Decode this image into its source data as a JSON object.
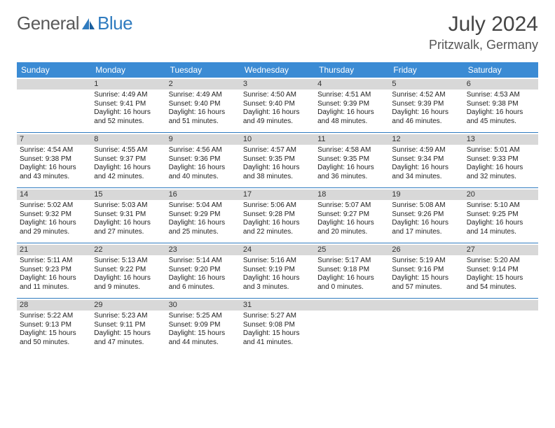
{
  "brand": {
    "general": "General",
    "blue": "Blue"
  },
  "title": "July 2024",
  "location": "Pritzwalk, Germany",
  "colors": {
    "header_bg": "#3b8bd4",
    "row_border": "#2f7bbf",
    "daynum_bg": "#d8d8d8",
    "logo_gray": "#5a5a5a",
    "logo_blue": "#2f7bbf"
  },
  "dayNames": [
    "Sunday",
    "Monday",
    "Tuesday",
    "Wednesday",
    "Thursday",
    "Friday",
    "Saturday"
  ],
  "weeks": [
    [
      {
        "blank": true
      },
      {
        "d": "1",
        "sr": "4:49 AM",
        "ss": "9:41 PM",
        "dl": "16 hours and 52 minutes."
      },
      {
        "d": "2",
        "sr": "4:49 AM",
        "ss": "9:40 PM",
        "dl": "16 hours and 51 minutes."
      },
      {
        "d": "3",
        "sr": "4:50 AM",
        "ss": "9:40 PM",
        "dl": "16 hours and 49 minutes."
      },
      {
        "d": "4",
        "sr": "4:51 AM",
        "ss": "9:39 PM",
        "dl": "16 hours and 48 minutes."
      },
      {
        "d": "5",
        "sr": "4:52 AM",
        "ss": "9:39 PM",
        "dl": "16 hours and 46 minutes."
      },
      {
        "d": "6",
        "sr": "4:53 AM",
        "ss": "9:38 PM",
        "dl": "16 hours and 45 minutes."
      }
    ],
    [
      {
        "d": "7",
        "sr": "4:54 AM",
        "ss": "9:38 PM",
        "dl": "16 hours and 43 minutes."
      },
      {
        "d": "8",
        "sr": "4:55 AM",
        "ss": "9:37 PM",
        "dl": "16 hours and 42 minutes."
      },
      {
        "d": "9",
        "sr": "4:56 AM",
        "ss": "9:36 PM",
        "dl": "16 hours and 40 minutes."
      },
      {
        "d": "10",
        "sr": "4:57 AM",
        "ss": "9:35 PM",
        "dl": "16 hours and 38 minutes."
      },
      {
        "d": "11",
        "sr": "4:58 AM",
        "ss": "9:35 PM",
        "dl": "16 hours and 36 minutes."
      },
      {
        "d": "12",
        "sr": "4:59 AM",
        "ss": "9:34 PM",
        "dl": "16 hours and 34 minutes."
      },
      {
        "d": "13",
        "sr": "5:01 AM",
        "ss": "9:33 PM",
        "dl": "16 hours and 32 minutes."
      }
    ],
    [
      {
        "d": "14",
        "sr": "5:02 AM",
        "ss": "9:32 PM",
        "dl": "16 hours and 29 minutes."
      },
      {
        "d": "15",
        "sr": "5:03 AM",
        "ss": "9:31 PM",
        "dl": "16 hours and 27 minutes."
      },
      {
        "d": "16",
        "sr": "5:04 AM",
        "ss": "9:29 PM",
        "dl": "16 hours and 25 minutes."
      },
      {
        "d": "17",
        "sr": "5:06 AM",
        "ss": "9:28 PM",
        "dl": "16 hours and 22 minutes."
      },
      {
        "d": "18",
        "sr": "5:07 AM",
        "ss": "9:27 PM",
        "dl": "16 hours and 20 minutes."
      },
      {
        "d": "19",
        "sr": "5:08 AM",
        "ss": "9:26 PM",
        "dl": "16 hours and 17 minutes."
      },
      {
        "d": "20",
        "sr": "5:10 AM",
        "ss": "9:25 PM",
        "dl": "16 hours and 14 minutes."
      }
    ],
    [
      {
        "d": "21",
        "sr": "5:11 AM",
        "ss": "9:23 PM",
        "dl": "16 hours and 11 minutes."
      },
      {
        "d": "22",
        "sr": "5:13 AM",
        "ss": "9:22 PM",
        "dl": "16 hours and 9 minutes."
      },
      {
        "d": "23",
        "sr": "5:14 AM",
        "ss": "9:20 PM",
        "dl": "16 hours and 6 minutes."
      },
      {
        "d": "24",
        "sr": "5:16 AM",
        "ss": "9:19 PM",
        "dl": "16 hours and 3 minutes."
      },
      {
        "d": "25",
        "sr": "5:17 AM",
        "ss": "9:18 PM",
        "dl": "16 hours and 0 minutes."
      },
      {
        "d": "26",
        "sr": "5:19 AM",
        "ss": "9:16 PM",
        "dl": "15 hours and 57 minutes."
      },
      {
        "d": "27",
        "sr": "5:20 AM",
        "ss": "9:14 PM",
        "dl": "15 hours and 54 minutes."
      }
    ],
    [
      {
        "d": "28",
        "sr": "5:22 AM",
        "ss": "9:13 PM",
        "dl": "15 hours and 50 minutes."
      },
      {
        "d": "29",
        "sr": "5:23 AM",
        "ss": "9:11 PM",
        "dl": "15 hours and 47 minutes."
      },
      {
        "d": "30",
        "sr": "5:25 AM",
        "ss": "9:09 PM",
        "dl": "15 hours and 44 minutes."
      },
      {
        "d": "31",
        "sr": "5:27 AM",
        "ss": "9:08 PM",
        "dl": "15 hours and 41 minutes."
      },
      {
        "blank": true
      },
      {
        "blank": true
      },
      {
        "blank": true
      }
    ]
  ],
  "labels": {
    "sunrise": "Sunrise: ",
    "sunset": "Sunset: ",
    "daylight": "Daylight: "
  }
}
